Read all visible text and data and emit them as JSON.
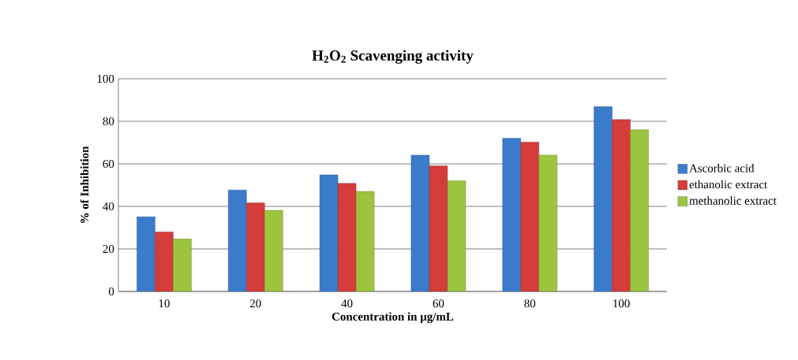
{
  "chart_data": {
    "type": "bar",
    "title": "H$_{2}$O$_{2}$ Scavenging activity",
    "xlabel": "Concentration in µg/mL",
    "ylabel": "% of Inhibition",
    "categories": [
      "10",
      "20",
      "40",
      "60",
      "80",
      "100"
    ],
    "series": [
      {
        "name": "Ascorbic acid",
        "color": "#3b7bcc",
        "values": [
          35.1,
          47.7,
          54.8,
          64.1,
          72,
          86.9
        ]
      },
      {
        "name": "ethanolic extract",
        "color": "#d43d3a",
        "values": [
          28,
          41.7,
          50.8,
          59.1,
          70.2,
          80.8
        ]
      },
      {
        "name": "methanolic extract",
        "color": "#9cc43f",
        "values": [
          24.7,
          38.1,
          47,
          52,
          64.1,
          76
        ]
      }
    ],
    "ylim": [
      0,
      100
    ],
    "yticks": [
      0,
      20,
      40,
      60,
      80,
      100
    ],
    "grid": "y",
    "legend": "right"
  }
}
